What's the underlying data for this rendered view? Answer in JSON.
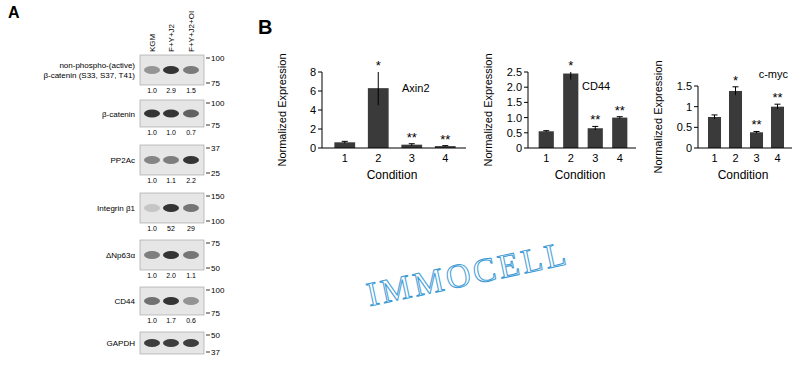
{
  "panel_labels": [
    "A",
    "B"
  ],
  "watermark": "IMMOCELL",
  "blot": {
    "lanes": [
      "KGM",
      "F+Y+J2",
      "F+Y+J2+OI"
    ],
    "rows": [
      {
        "label": [
          "non-phospho-(active)",
          "β-catenin (S33, S37, T41)"
        ],
        "markers": [
          100,
          75
        ],
        "quantification": [
          "1.0",
          "2.9",
          "1.5"
        ]
      },
      {
        "label": [
          "β-catenin"
        ],
        "markers": [
          100,
          75
        ],
        "quantification": [
          "1.0",
          "1.0",
          "0.7"
        ]
      },
      {
        "label": [
          "PP2Ac"
        ],
        "markers": [
          37,
          25
        ],
        "quantification": [
          "1.0",
          "1.1",
          "2.2"
        ]
      },
      {
        "label": [
          "Integrin β1"
        ],
        "markers": [
          150,
          100
        ],
        "quantification": [
          "1.0",
          "52",
          "29"
        ]
      },
      {
        "label": [
          "ΔNp63α"
        ],
        "markers": [
          75,
          50
        ],
        "quantification": [
          "1.0",
          "2.0",
          "1.1"
        ]
      },
      {
        "label": [
          "CD44"
        ],
        "markers": [
          100,
          75
        ],
        "quantification": [
          "1.0",
          "1.7",
          "0.6"
        ]
      },
      {
        "label": [
          "GAPDH"
        ],
        "markers": [
          50,
          37
        ]
      }
    ]
  },
  "chart_data": [
    {
      "type": "bar",
      "title": "Axin2",
      "x_label": "Condition",
      "y_label": "Normalized Expression",
      "categories": [
        "1",
        "2",
        "3",
        "4"
      ],
      "values": [
        0.6,
        6.3,
        0.35,
        0.2
      ],
      "errors": [
        0.1,
        1.8,
        0.1,
        0.05
      ],
      "annotations": [
        null,
        "*",
        "**",
        "**"
      ],
      "color": "#3a3a3a",
      "ylim": [
        0,
        8
      ],
      "yticks": [
        0,
        2,
        4,
        6,
        8
      ]
    },
    {
      "type": "bar",
      "title": "CD44",
      "x_label": "Condition",
      "y_label": "Normalized Expression",
      "categories": [
        "1",
        "2",
        "3",
        "4"
      ],
      "values": [
        0.55,
        2.45,
        0.65,
        1.0
      ],
      "errors": [
        0.02,
        0.2,
        0.06,
        0.03
      ],
      "annotations": [
        null,
        "*",
        "**",
        "**"
      ],
      "color": "#3a3a3a",
      "ylim": [
        0,
        2.5
      ],
      "yticks": [
        0,
        0.5,
        {
          "value": 1,
          "label": "1.0"
        },
        1.5,
        {
          "value": 2,
          "label": "2.0"
        },
        2.5
      ]
    },
    {
      "type": "bar",
      "title": "c-myc",
      "x_label": "Condition",
      "y_label": "Normalized Expression",
      "categories": [
        "1",
        "2",
        "3",
        "4"
      ],
      "values": [
        0.75,
        1.38,
        0.38,
        1.0
      ],
      "errors": [
        0.05,
        0.1,
        0.02,
        0.06
      ],
      "annotations": [
        null,
        "*",
        "**",
        "**"
      ],
      "color": "#3a3a3a",
      "ylim": [
        0,
        1.5
      ],
      "yticks": [
        0,
        0.5,
        1,
        1.5
      ]
    }
  ]
}
